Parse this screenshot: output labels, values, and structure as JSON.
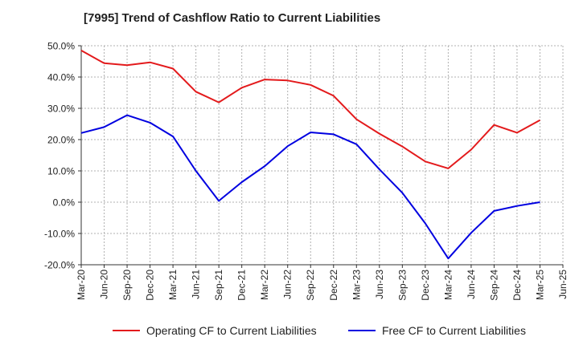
{
  "chart_data": {
    "type": "line",
    "title": "[7995]  Trend of Cashflow Ratio to Current Liabilities",
    "xlabel": "",
    "ylabel": "",
    "ylim": [
      -20,
      50
    ],
    "y_ticks": [
      "50.0%",
      "40.0%",
      "30.0%",
      "20.0%",
      "10.0%",
      "0.0%",
      "-10.0%",
      "-20.0%"
    ],
    "y_tick_values": [
      50,
      40,
      30,
      20,
      10,
      0,
      -10,
      -20
    ],
    "x_ticks": [
      "Mar-20",
      "Jun-20",
      "Sep-20",
      "Dec-20",
      "Mar-21",
      "Jun-21",
      "Sep-21",
      "Dec-21",
      "Mar-22",
      "Jun-22",
      "Sep-22",
      "Dec-22",
      "Mar-23",
      "Jun-23",
      "Sep-23",
      "Dec-23",
      "Mar-24",
      "Jun-24",
      "Sep-24",
      "Dec-24",
      "Mar-25",
      "Jun-25"
    ],
    "grid": true,
    "legend_position": "bottom",
    "series": [
      {
        "name": "Operating CF to Current Liabilities",
        "color": "#e31a1c",
        "values": [
          48.5,
          44.4,
          43.8,
          44.7,
          42.7,
          35.3,
          31.9,
          36.6,
          39.2,
          38.9,
          37.5,
          34.0,
          26.5,
          21.9,
          17.8,
          13.0,
          10.8,
          16.8,
          24.7,
          22.2,
          26.2
        ]
      },
      {
        "name": "Free CF to Current Liabilities",
        "color": "#0000e0",
        "values": [
          22.1,
          24.0,
          27.8,
          25.4,
          21.0,
          10.0,
          0.4,
          6.4,
          11.5,
          17.9,
          22.3,
          21.7,
          18.5,
          10.5,
          3.0,
          -6.8,
          -18.0,
          -9.8,
          -2.8,
          -1.2,
          0.0
        ]
      }
    ]
  }
}
